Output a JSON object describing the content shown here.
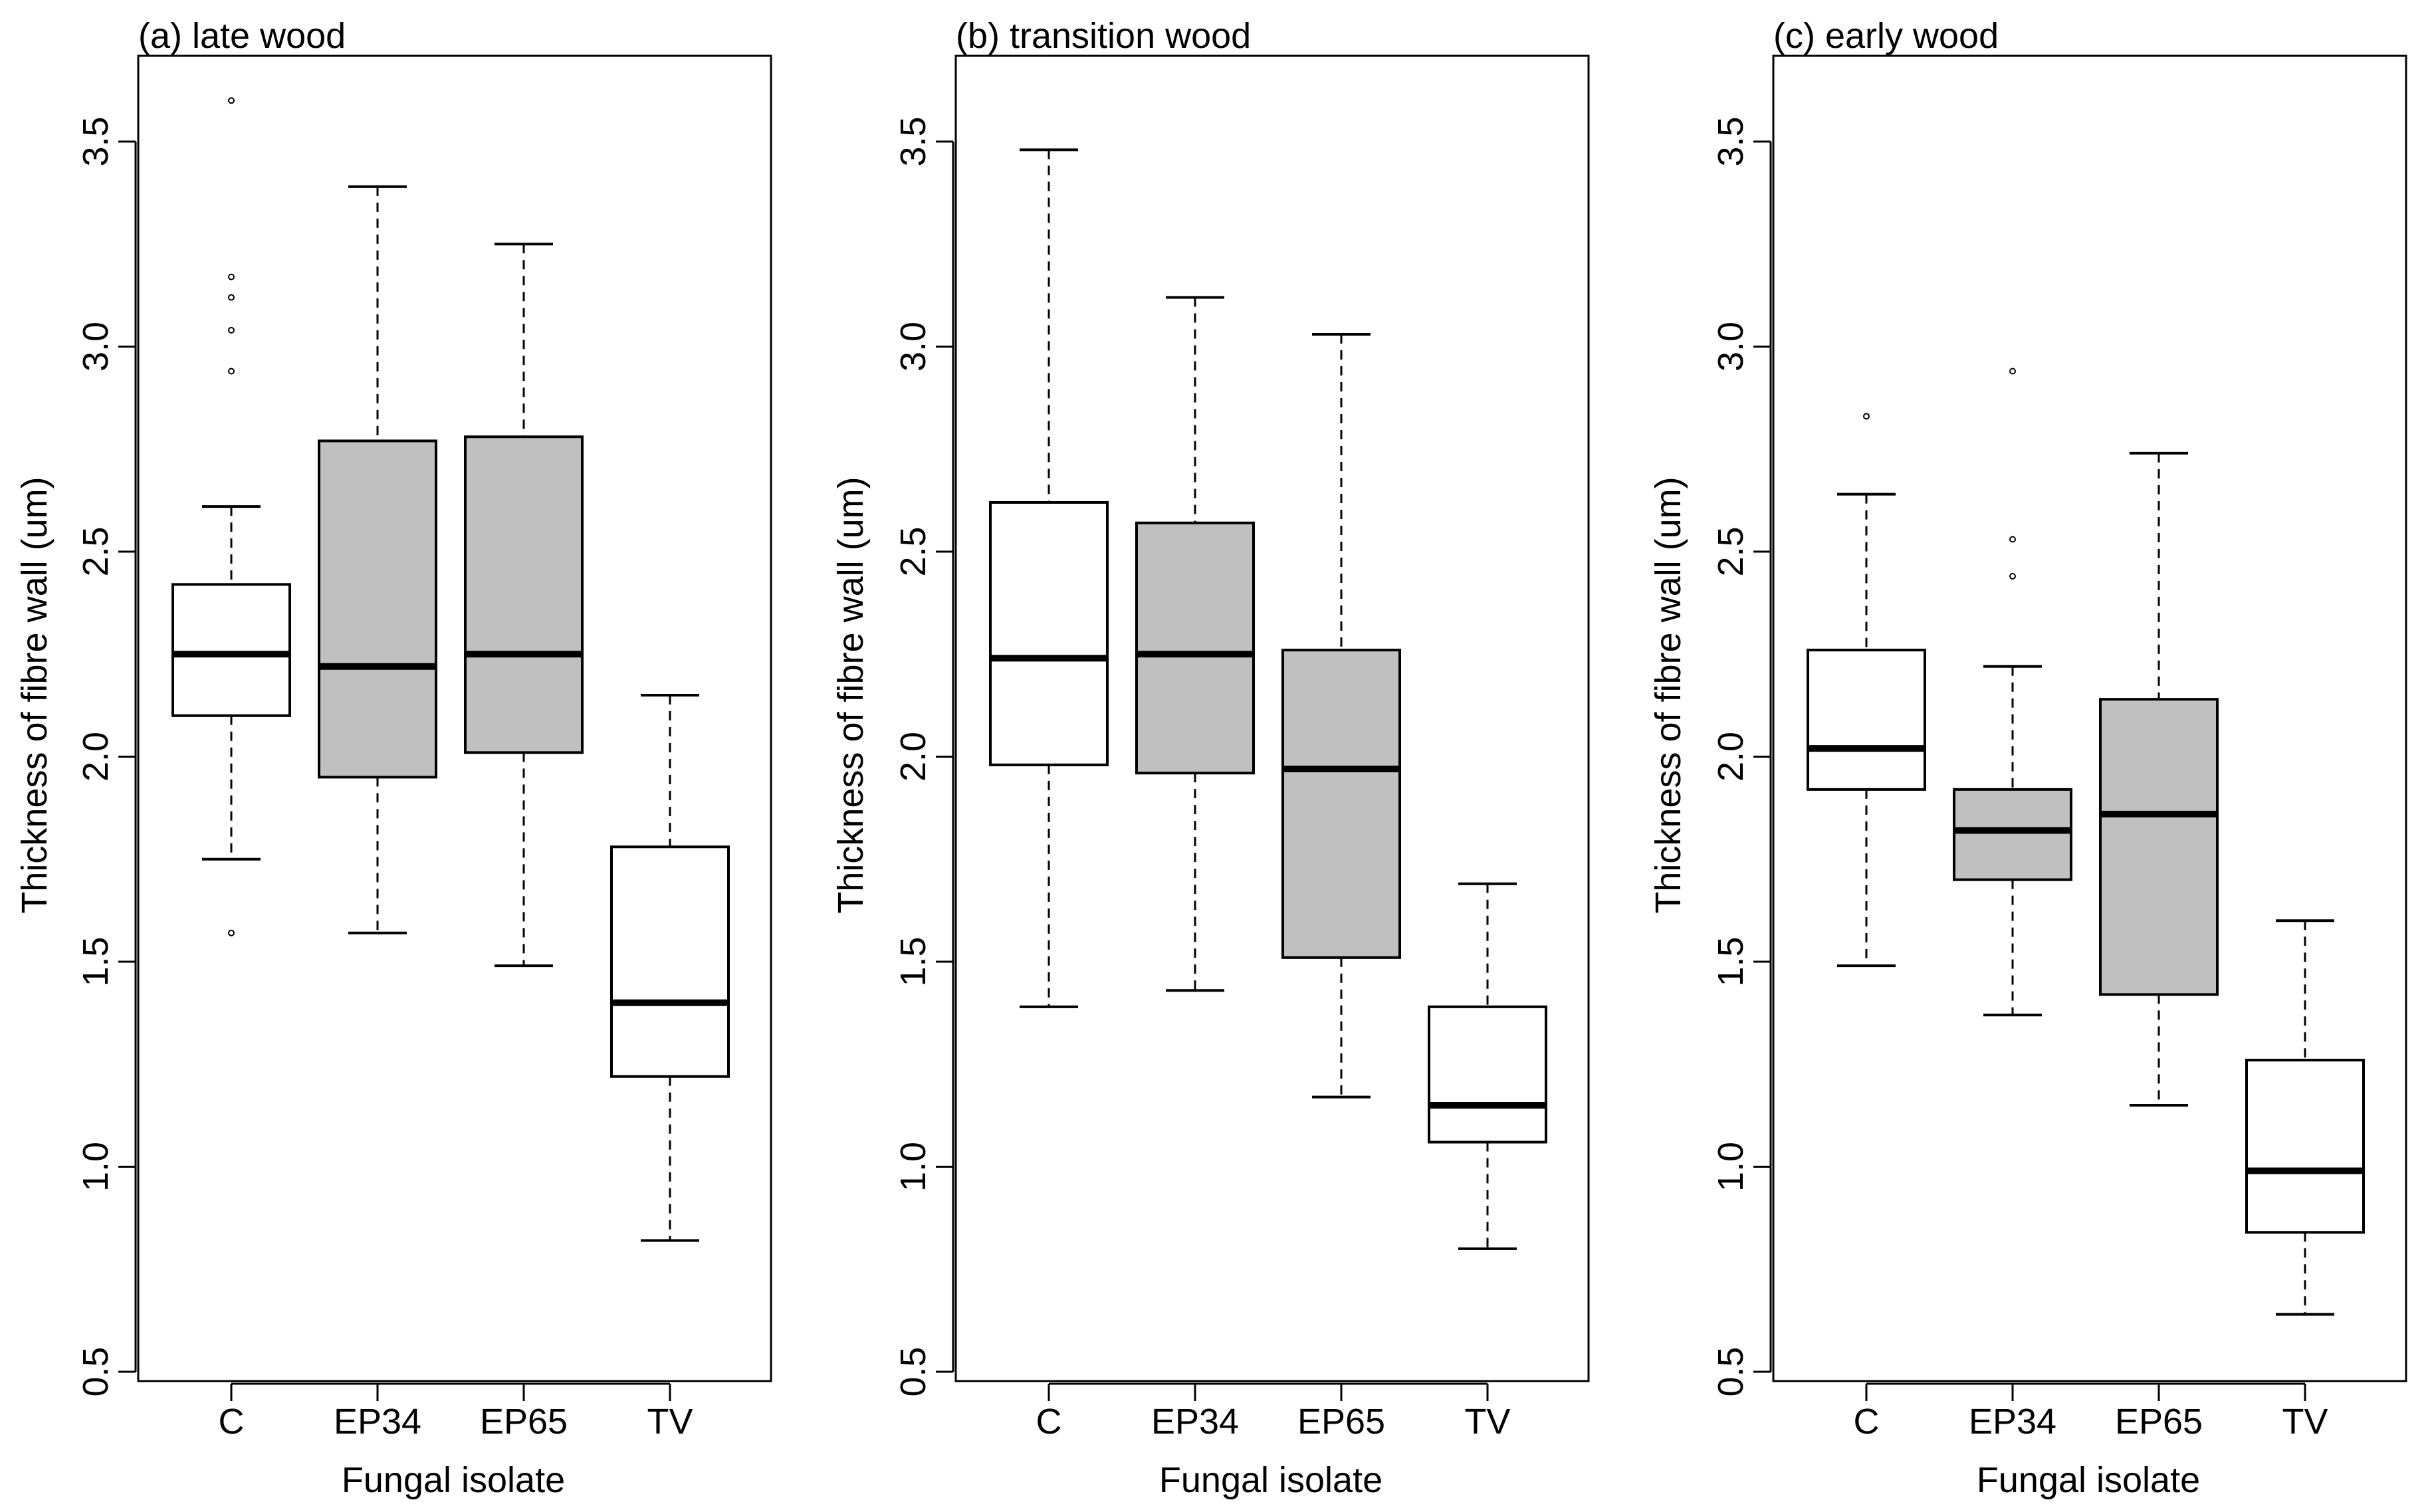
{
  "chart_data": [
    {
      "type": "box",
      "title": "(a) late wood",
      "xlabel": "Fungal isolate",
      "ylabel": "Thickness of fibre wall (um)",
      "ylim": [
        0.5,
        3.6
      ],
      "yticks": [
        "0.5",
        "1.0",
        "1.5",
        "2.0",
        "2.5",
        "3.0",
        "3.5"
      ],
      "categories": [
        "C",
        "EP34",
        "EP65",
        "TV"
      ],
      "boxes": [
        {
          "label": "C",
          "fill": "#ffffff",
          "whisker_low": 1.75,
          "q1": 2.1,
          "median": 2.25,
          "q3": 2.42,
          "whisker_high": 2.61,
          "outliers": [
            1.57,
            2.94,
            3.04,
            3.12,
            3.17,
            3.6
          ]
        },
        {
          "label": "EP34",
          "fill": "#c0c0c0",
          "whisker_low": 1.57,
          "q1": 1.95,
          "median": 2.22,
          "q3": 2.77,
          "whisker_high": 3.39,
          "outliers": []
        },
        {
          "label": "EP65",
          "fill": "#c0c0c0",
          "whisker_low": 1.49,
          "q1": 2.01,
          "median": 2.25,
          "q3": 2.78,
          "whisker_high": 3.25,
          "outliers": []
        },
        {
          "label": "TV",
          "fill": "#ffffff",
          "whisker_low": 0.82,
          "q1": 1.22,
          "median": 1.4,
          "q3": 1.78,
          "whisker_high": 2.15,
          "outliers": []
        }
      ]
    },
    {
      "type": "box",
      "title": "(b) transition wood",
      "xlabel": "Fungal isolate",
      "ylabel": "Thickness of fibre wall (um)",
      "ylim": [
        0.5,
        3.6
      ],
      "yticks": [
        "0.5",
        "1.0",
        "1.5",
        "2.0",
        "2.5",
        "3.0",
        "3.5"
      ],
      "categories": [
        "C",
        "EP34",
        "EP65",
        "TV"
      ],
      "boxes": [
        {
          "label": "C",
          "fill": "#ffffff",
          "whisker_low": 1.39,
          "q1": 1.98,
          "median": 2.24,
          "q3": 2.62,
          "whisker_high": 3.48,
          "outliers": []
        },
        {
          "label": "EP34",
          "fill": "#c0c0c0",
          "whisker_low": 1.43,
          "q1": 1.96,
          "median": 2.25,
          "q3": 2.57,
          "whisker_high": 3.12,
          "outliers": []
        },
        {
          "label": "EP65",
          "fill": "#c0c0c0",
          "whisker_low": 1.17,
          "q1": 1.51,
          "median": 1.97,
          "q3": 2.26,
          "whisker_high": 3.03,
          "outliers": []
        },
        {
          "label": "TV",
          "fill": "#ffffff",
          "whisker_low": 0.8,
          "q1": 1.06,
          "median": 1.15,
          "q3": 1.39,
          "whisker_high": 1.69,
          "outliers": []
        }
      ]
    },
    {
      "type": "box",
      "title": "(c) early wood",
      "xlabel": "Fungal isolate",
      "ylabel": "Thickness of fibre wall (um)",
      "ylim": [
        0.5,
        3.6
      ],
      "yticks": [
        "0.5",
        "1.0",
        "1.5",
        "2.0",
        "2.5",
        "3.0",
        "3.5"
      ],
      "categories": [
        "C",
        "EP34",
        "EP65",
        "TV"
      ],
      "boxes": [
        {
          "label": "C",
          "fill": "#ffffff",
          "whisker_low": 1.49,
          "q1": 1.92,
          "median": 2.02,
          "q3": 2.26,
          "whisker_high": 2.64,
          "outliers": [
            2.83
          ]
        },
        {
          "label": "EP34",
          "fill": "#c0c0c0",
          "whisker_low": 1.37,
          "q1": 1.7,
          "median": 1.82,
          "q3": 1.92,
          "whisker_high": 2.22,
          "outliers": [
            2.44,
            2.53,
            2.94
          ]
        },
        {
          "label": "EP65",
          "fill": "#c0c0c0",
          "whisker_low": 1.15,
          "q1": 1.42,
          "median": 1.86,
          "q3": 2.14,
          "whisker_high": 2.74,
          "outliers": []
        },
        {
          "label": "TV",
          "fill": "#ffffff",
          "whisker_low": 0.64,
          "q1": 0.84,
          "median": 0.99,
          "q3": 1.26,
          "whisker_high": 1.6,
          "outliers": []
        }
      ]
    }
  ]
}
